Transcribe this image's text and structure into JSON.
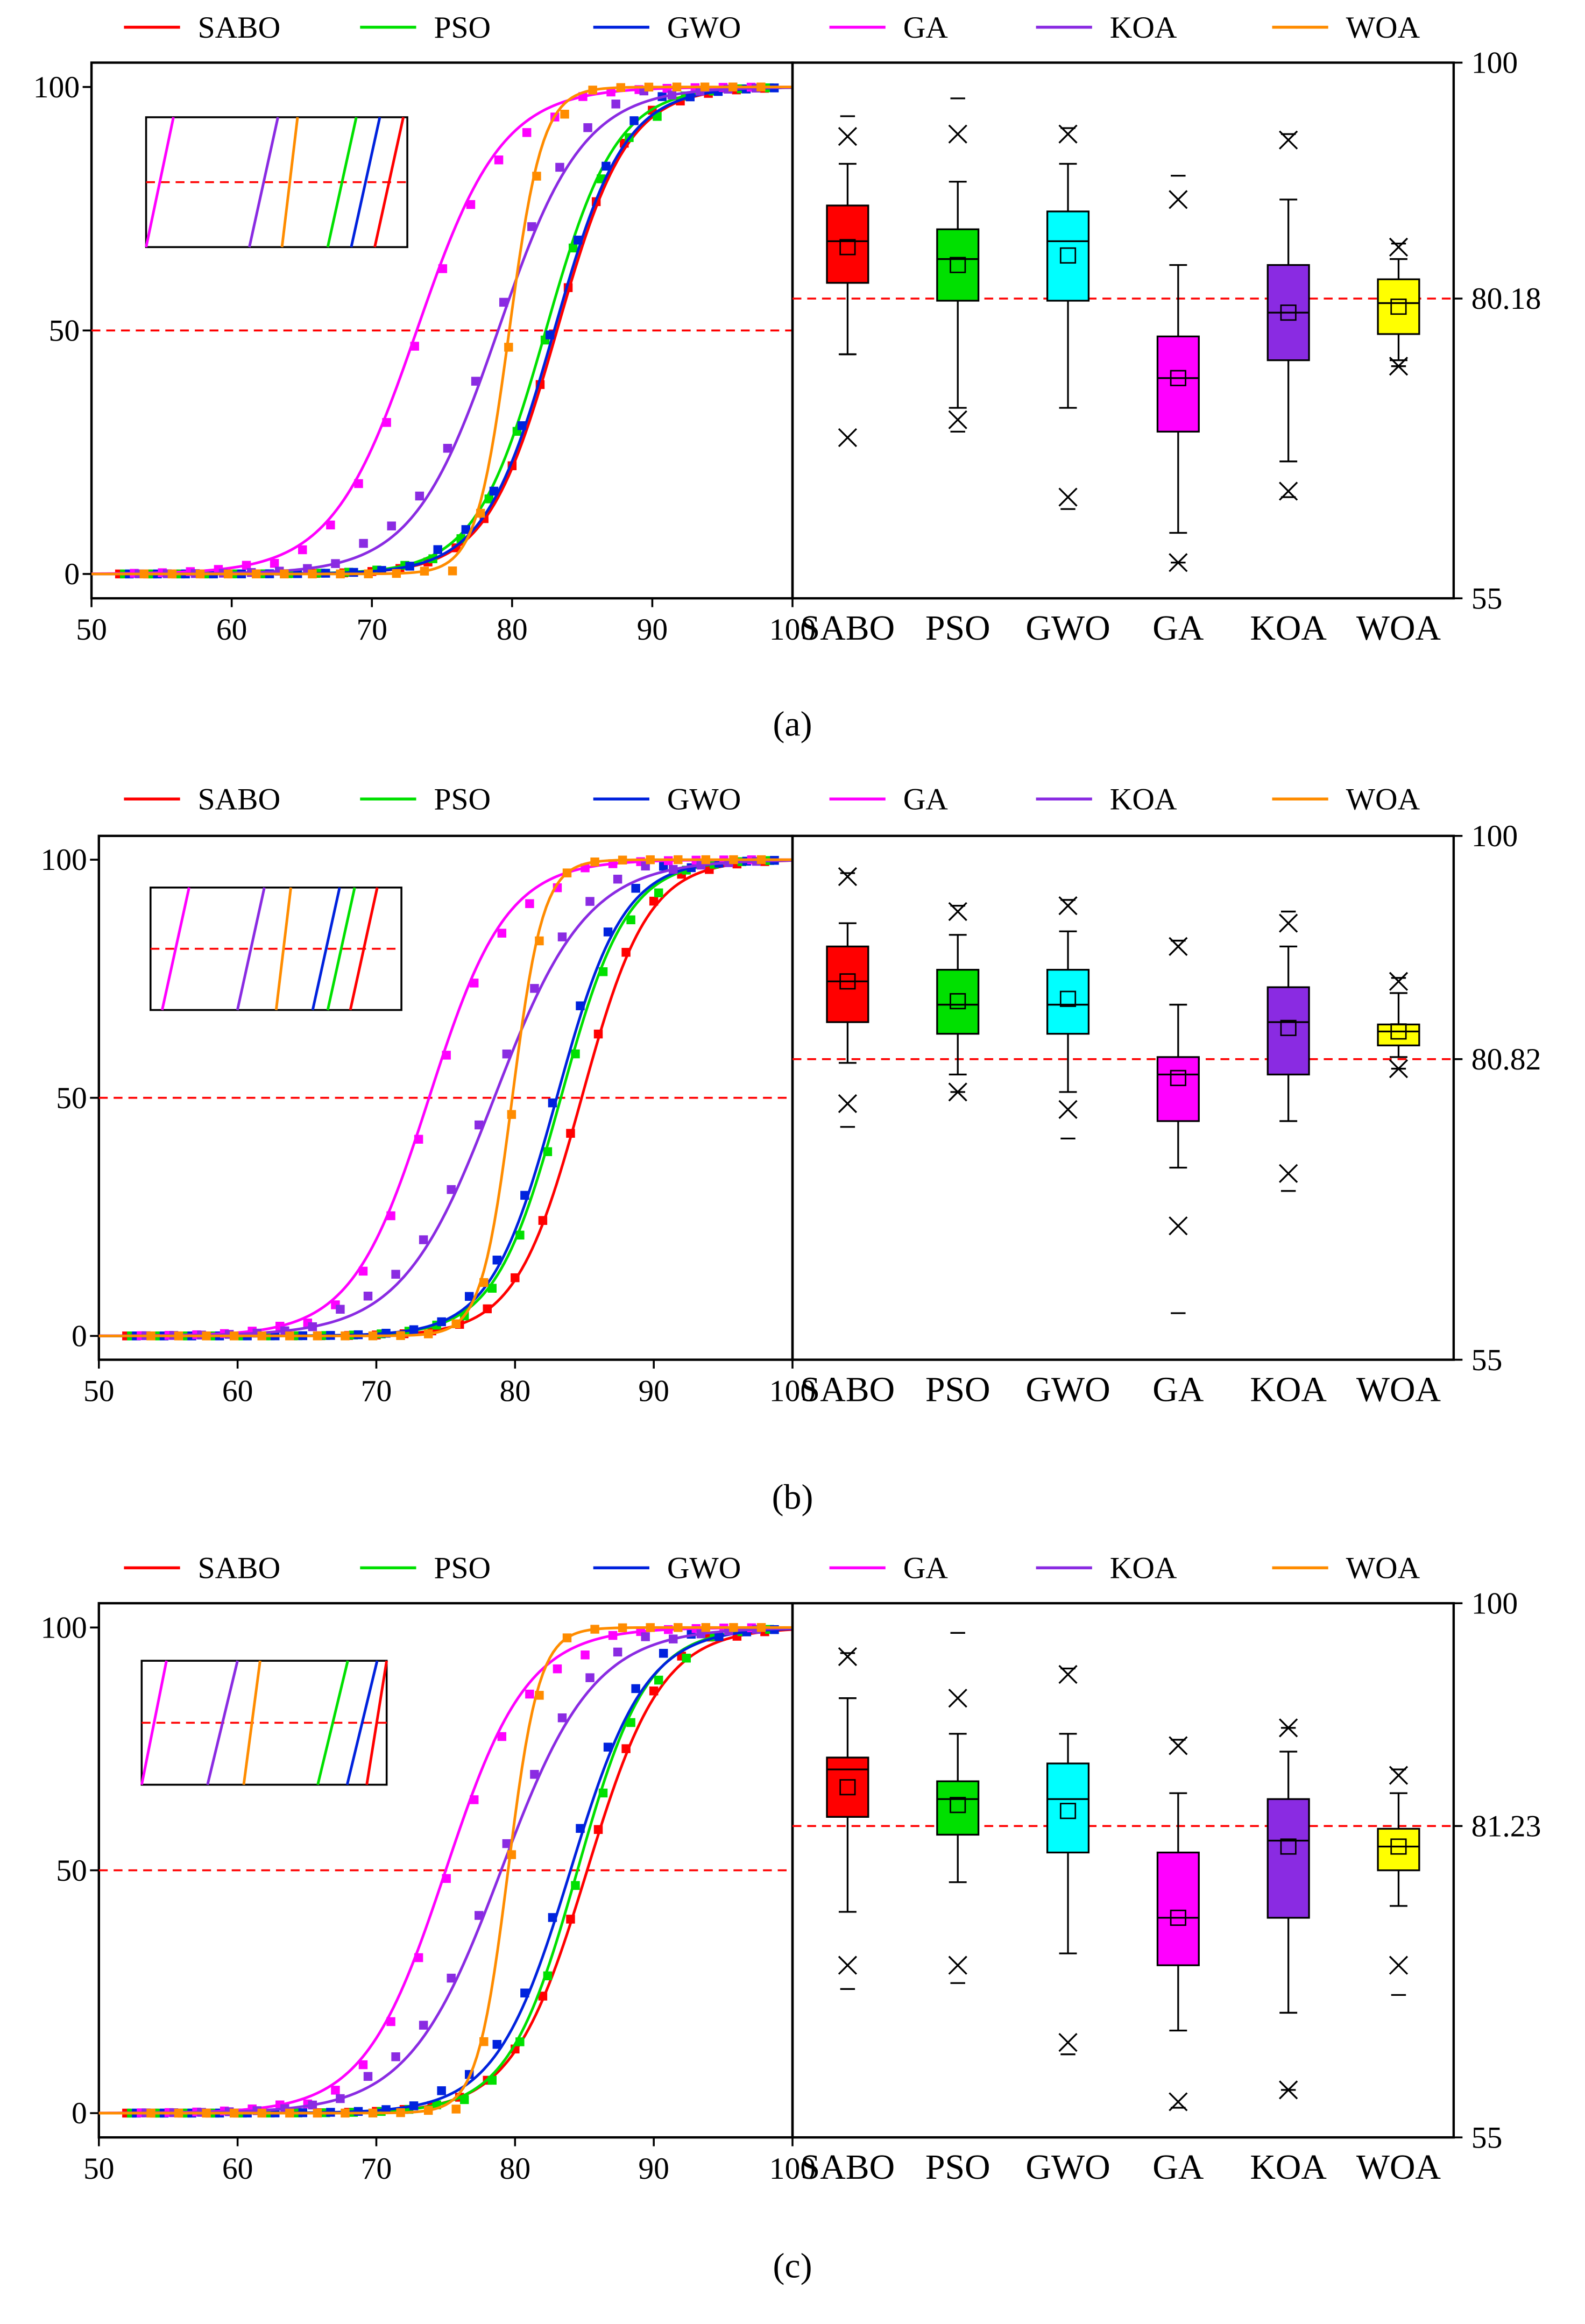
{
  "series_names": [
    "SABO",
    "PSO",
    "GWO",
    "GA",
    "KOA",
    "WOA"
  ],
  "colors": {
    "SABO": "#ff0000",
    "PSO": "#00e000",
    "GWO": "#0022dd",
    "GA": "#ff00ff",
    "KOA": "#8a2be2",
    "WOA": "#ff8c00",
    "box_GWO": "#00ffff",
    "box_WOA": "#ffff00",
    "reference_line": "#ff0000"
  },
  "chart_data": [
    {
      "panel_label": "(a)",
      "left": {
        "type": "line",
        "title": "",
        "xlim": [
          50,
          100
        ],
        "ylim": [
          -5,
          105
        ],
        "xticks": [
          "50",
          "60",
          "70",
          "80",
          "90",
          "100"
        ],
        "yticks": [
          "0",
          "50",
          "100"
        ],
        "ref_y": 50,
        "legend": "top",
        "inset": "top-left",
        "series": [
          {
            "name": "SABO",
            "x0": 83.2,
            "k": 0.4,
            "inset_x": 0.93
          },
          {
            "name": "PSO",
            "x0": 82.4,
            "k": 0.4,
            "inset_x": 0.75
          },
          {
            "name": "GWO",
            "x0": 83.0,
            "k": 0.4,
            "inset_x": 0.84
          },
          {
            "name": "GA",
            "x0": 73.2,
            "k": 0.33,
            "inset_x": 0.05
          },
          {
            "name": "KOA",
            "x0": 79.0,
            "k": 0.33,
            "inset_x": 0.45
          },
          {
            "name": "WOA",
            "x0": 79.8,
            "k": 0.85,
            "inset_x": 0.55
          }
        ]
      },
      "right": {
        "type": "box",
        "categories": [
          "SABO",
          "PSO",
          "GWO",
          "GA",
          "KOA",
          "WOA"
        ],
        "ylim": [
          55,
          100
        ],
        "yticks": [
          "55",
          "100"
        ],
        "ref_value": 80.18,
        "ref_label": "80.18",
        "boxes": [
          {
            "q1": 81.5,
            "median": 85,
            "q3": 88,
            "mean": 84.5,
            "wlo": 75.5,
            "whi": 91.5,
            "xlo": 68.5,
            "xhi": 93.8,
            "min": 75.5,
            "max": 95.5
          },
          {
            "q1": 80,
            "median": 83.5,
            "q3": 86,
            "mean": 83,
            "wlo": 71,
            "whi": 90,
            "xlo": 70,
            "xhi": 94,
            "min": 69,
            "max": 97
          },
          {
            "q1": 80,
            "median": 85,
            "q3": 87.5,
            "mean": 83.8,
            "wlo": 71,
            "whi": 91.5,
            "xlo": 63.5,
            "xhi": 94,
            "min": 62.5,
            "max": 94.5
          },
          {
            "q1": 69,
            "median": 73.5,
            "q3": 77,
            "mean": 73.5,
            "wlo": 60.5,
            "whi": 83,
            "xlo": 58,
            "xhi": 88.5,
            "min": 58,
            "max": 90.5
          },
          {
            "q1": 75,
            "median": 79,
            "q3": 83,
            "mean": 79,
            "wlo": 66.5,
            "whi": 88.5,
            "xlo": 64,
            "xhi": 93.5,
            "min": 63.5,
            "max": 94
          },
          {
            "q1": 77.2,
            "median": 79.8,
            "q3": 81.8,
            "mean": 79.5,
            "wlo": 75,
            "whi": 83.5,
            "xlo": 74.5,
            "xhi": 84.5,
            "min": 74.5,
            "max": 84.8
          }
        ]
      }
    },
    {
      "panel_label": "(b)",
      "left": {
        "type": "line",
        "title": "",
        "xlim": [
          50,
          100
        ],
        "ylim": [
          -5,
          105
        ],
        "xticks": [
          "50",
          "60",
          "70",
          "80",
          "90",
          "100"
        ],
        "yticks": [
          "0",
          "50",
          "100"
        ],
        "ref_y": 50,
        "legend": "top",
        "inset": "top-left",
        "series": [
          {
            "name": "SABO",
            "x0": 84.8,
            "k": 0.42,
            "inset_x": 0.85
          },
          {
            "name": "PSO",
            "x0": 83.3,
            "k": 0.42,
            "inset_x": 0.76
          },
          {
            "name": "GWO",
            "x0": 83.0,
            "k": 0.42,
            "inset_x": 0.7
          },
          {
            "name": "GA",
            "x0": 73.8,
            "k": 0.36,
            "inset_x": 0.1
          },
          {
            "name": "KOA",
            "x0": 78.5,
            "k": 0.3,
            "inset_x": 0.4
          },
          {
            "name": "WOA",
            "x0": 79.8,
            "k": 0.9,
            "inset_x": 0.53
          }
        ]
      },
      "right": {
        "type": "box",
        "categories": [
          "SABO",
          "PSO",
          "GWO",
          "GA",
          "KOA",
          "WOA"
        ],
        "ylim": [
          55,
          100
        ],
        "yticks": [
          "55",
          "100"
        ],
        "ref_value": 80.82,
        "ref_label": "80.82",
        "boxes": [
          {
            "q1": 84,
            "median": 87.5,
            "q3": 90.5,
            "mean": 87.5,
            "wlo": 80.5,
            "whi": 92.5,
            "xlo": 77,
            "xhi": 96.5,
            "min": 75,
            "max": 96.8
          },
          {
            "q1": 83,
            "median": 85.5,
            "q3": 88.5,
            "mean": 85.8,
            "wlo": 79.5,
            "whi": 91.5,
            "xlo": 78,
            "xhi": 93.5,
            "min": 78,
            "max": 94
          },
          {
            "q1": 83,
            "median": 85.5,
            "q3": 88.5,
            "mean": 86,
            "wlo": 78,
            "whi": 91.8,
            "xlo": 76.5,
            "xhi": 94,
            "min": 74,
            "max": 94.5
          },
          {
            "q1": 75.5,
            "median": 79.5,
            "q3": 81,
            "mean": 79.2,
            "wlo": 71.5,
            "whi": 85.5,
            "xlo": 66.5,
            "xhi": 90.5,
            "min": 59,
            "max": 91
          },
          {
            "q1": 79.5,
            "median": 84,
            "q3": 87,
            "mean": 83.5,
            "wlo": 75.5,
            "whi": 90.5,
            "xlo": 71,
            "xhi": 92.5,
            "min": 69.5,
            "max": 93.5
          },
          {
            "q1": 82,
            "median": 83.2,
            "q3": 83.8,
            "mean": 83.2,
            "wlo": 81,
            "whi": 86.5,
            "xlo": 80,
            "xhi": 87.5,
            "min": 80,
            "max": 87.8
          }
        ]
      }
    },
    {
      "panel_label": "(c)",
      "left": {
        "type": "line",
        "title": "",
        "xlim": [
          50,
          100
        ],
        "ylim": [
          -5,
          105
        ],
        "xticks": [
          "50",
          "60",
          "70",
          "80",
          "90",
          "100"
        ],
        "yticks": [
          "0",
          "50",
          "100"
        ],
        "ref_y": 50,
        "legend": "top",
        "inset": "top-left",
        "series": [
          {
            "name": "SABO",
            "x0": 85.2,
            "k": 0.37,
            "inset_x": 0.98
          },
          {
            "name": "PSO",
            "x0": 84.5,
            "k": 0.4,
            "inset_x": 0.78
          },
          {
            "name": "GWO",
            "x0": 84.0,
            "k": 0.37,
            "inset_x": 0.9
          },
          {
            "name": "GA",
            "x0": 75.0,
            "k": 0.34,
            "inset_x": 0.04
          },
          {
            "name": "KOA",
            "x0": 79.0,
            "k": 0.3,
            "inset_x": 0.33
          },
          {
            "name": "WOA",
            "x0": 79.5,
            "k": 0.9,
            "inset_x": 0.45
          }
        ]
      },
      "right": {
        "type": "box",
        "categories": [
          "SABO",
          "PSO",
          "GWO",
          "GA",
          "KOA",
          "WOA"
        ],
        "ylim": [
          55,
          100
        ],
        "yticks": [
          "55",
          "100"
        ],
        "ref_value": 81.23,
        "ref_label": "81.23",
        "boxes": [
          {
            "q1": 82,
            "median": 86,
            "q3": 87,
            "mean": 84.5,
            "wlo": 74,
            "whi": 92,
            "xlo": 69.5,
            "xhi": 95.5,
            "min": 67.5,
            "max": 95.8
          },
          {
            "q1": 80.5,
            "median": 83.5,
            "q3": 85,
            "mean": 83,
            "wlo": 76.5,
            "whi": 89,
            "xlo": 69.5,
            "xhi": 92,
            "min": 68,
            "max": 97.5
          },
          {
            "q1": 79,
            "median": 83.5,
            "q3": 86.5,
            "mean": 82.5,
            "wlo": 70.5,
            "whi": 89,
            "xlo": 63,
            "xhi": 94,
            "min": 62,
            "max": 94.5
          },
          {
            "q1": 69.5,
            "median": 73.5,
            "q3": 79,
            "mean": 73.5,
            "wlo": 64,
            "whi": 84,
            "xlo": 58,
            "xhi": 88,
            "min": 57.5,
            "max": 88.5
          },
          {
            "q1": 73.5,
            "median": 80,
            "q3": 83.5,
            "mean": 79.5,
            "wlo": 65.5,
            "whi": 87.5,
            "xlo": 59,
            "xhi": 89.5,
            "min": 59,
            "max": 89.5
          },
          {
            "q1": 77.5,
            "median": 79.5,
            "q3": 81,
            "mean": 79.5,
            "wlo": 74.5,
            "whi": 84,
            "xlo": 69.5,
            "xhi": 85.5,
            "min": 67,
            "max": 86
          }
        ]
      }
    }
  ]
}
